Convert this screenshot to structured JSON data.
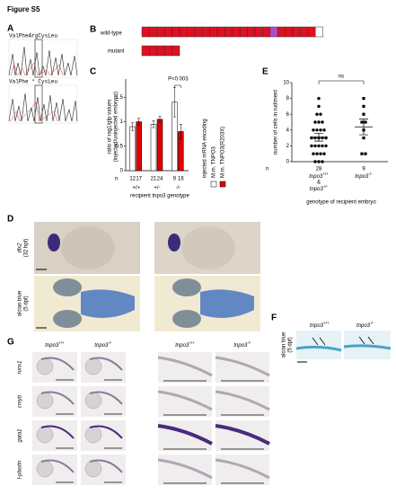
{
  "figure_title": "Figure S5",
  "panels": {
    "A": {
      "label": "A",
      "sequences": [
        "ValPheArgCysLeu",
        "ValPhe * CysLeu"
      ]
    },
    "B": {
      "label": "B",
      "rows": [
        "wild-type",
        "mutant"
      ]
    },
    "C": {
      "label": "C"
    },
    "D": {
      "label": "D",
      "row_labels": [
        [
          "dlx2",
          "(32 hpf)"
        ],
        [
          "alcian blue",
          "(5 dpf)"
        ]
      ]
    },
    "E": {
      "label": "E"
    },
    "F": {
      "label": "F",
      "column_headers": [
        "tnpo3+/+",
        "tnpo3-/-"
      ],
      "row_label": [
        "alcian blue",
        "(5 dpf)"
      ]
    },
    "G": {
      "label": "G",
      "column_headers": [
        "tnpo3+/+",
        "tnpo3-/-",
        "tnpo3+/+",
        "tnpo3-/-"
      ],
      "row_labels": [
        "runx1",
        "cmyb",
        "gata1",
        "l-plastin"
      ]
    }
  },
  "chart_data": [
    {
      "type": "bar",
      "ylabel": [
        "ratio of rag1/gfp values",
        "(injected/uninjected embryos)"
      ],
      "categories": [
        "+/+",
        "+/-",
        "-/-"
      ],
      "xlabel": "recipient tnpo3 genotype",
      "n_label": "n",
      "ylim": [
        0,
        1.8
      ],
      "yticks": [
        0,
        0.5,
        1,
        1.5
      ],
      "legend_title": "injected mRNA encoding",
      "series": [
        {
          "name": "M.m. TNPO3",
          "color": "#ffffff",
          "values": [
            0.9,
            0.95,
            1.4
          ],
          "errors": [
            0.08,
            0.07,
            0.3
          ],
          "n": [
            12,
            21,
            9
          ]
        },
        {
          "name": "M.m. TNPO3(R203X)",
          "color": "#e00000",
          "values": [
            1.0,
            1.05,
            0.8
          ],
          "errors": [
            0.07,
            0.06,
            0.15
          ],
          "n": [
            17,
            24,
            16
          ]
        }
      ],
      "annotation": "P<0.003"
    },
    {
      "type": "strip",
      "ylabel": "number of cells in rudiment",
      "categories": [
        [
          "tnpo3+/+",
          "&",
          "tnpo3+/-"
        ],
        [
          "tnpo3-/-"
        ]
      ],
      "xlabel": "genotype of recipient embryo",
      "n_label": "n",
      "n": [
        28,
        9
      ],
      "markers": [
        "circle",
        "square"
      ],
      "color": "#000000",
      "ylim": [
        0,
        10
      ],
      "yticks": [
        0,
        2,
        4,
        6,
        8,
        10
      ],
      "values": [
        [
          8,
          7,
          6,
          6,
          5,
          5,
          5,
          4,
          4,
          4,
          4,
          3,
          3,
          3,
          3,
          3,
          2,
          2,
          2,
          2,
          2,
          1,
          1,
          1,
          1,
          0,
          0,
          0
        ],
        [
          8,
          7,
          6,
          5,
          5,
          4,
          3,
          1,
          1
        ]
      ],
      "means": [
        3.1,
        4.4
      ],
      "sem": [
        0.5,
        1.0
      ],
      "annotation": "ns"
    }
  ]
}
